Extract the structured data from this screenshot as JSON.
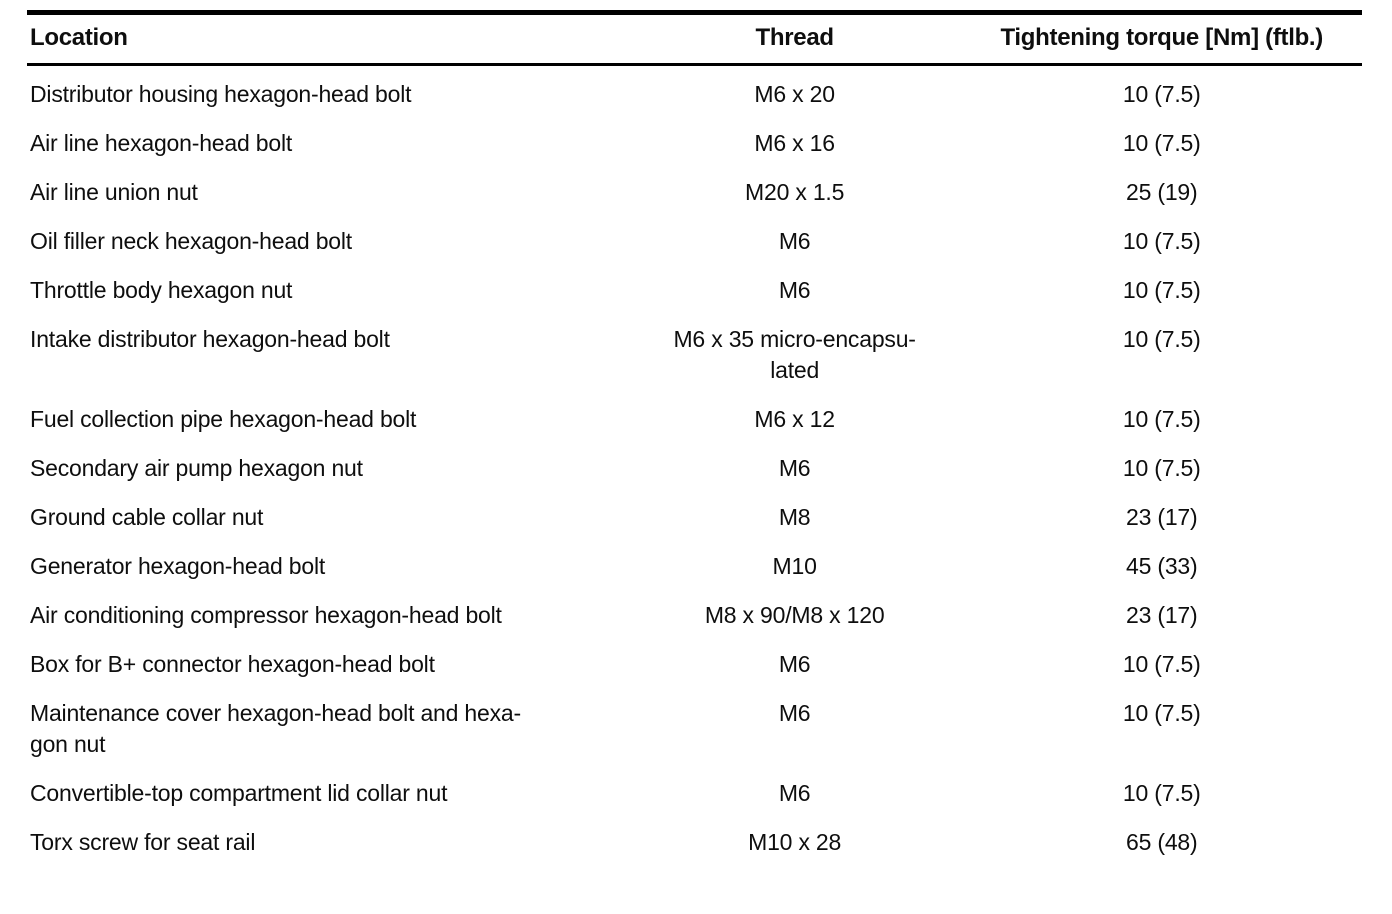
{
  "table": {
    "columns": [
      "Location",
      "Thread",
      "Tightening torque [Nm] (ftlb.)"
    ],
    "rows": [
      {
        "location": "Distributor housing hexagon-head bolt",
        "thread": "M6 x 20",
        "torque": "10 (7.5)"
      },
      {
        "location": "Air line hexagon-head bolt",
        "thread": "M6 x 16",
        "torque": "10 (7.5)"
      },
      {
        "location": "Air line union nut",
        "thread": "M20 x 1.5",
        "torque": "25 (19)"
      },
      {
        "location": "Oil filler neck hexagon-head bolt",
        "thread": "M6",
        "torque": "10 (7.5)"
      },
      {
        "location": "Throttle body hexagon nut",
        "thread": "M6",
        "torque": "10 (7.5)"
      },
      {
        "location": "Intake distributor hexagon-head bolt",
        "thread": "M6 x 35 micro-encapsu-\nlated",
        "torque": "10 (7.5)"
      },
      {
        "location": "Fuel collection pipe hexagon-head bolt",
        "thread": "M6 x 12",
        "torque": "10 (7.5)"
      },
      {
        "location": "Secondary air pump hexagon nut",
        "thread": "M6",
        "torque": "10 (7.5)"
      },
      {
        "location": "Ground cable collar nut",
        "thread": "M8",
        "torque": "23 (17)"
      },
      {
        "location": "Generator hexagon-head bolt",
        "thread": "M10",
        "torque": "45 (33)"
      },
      {
        "location": "Air conditioning compressor hexagon-head bolt",
        "thread": "M8 x 90/M8 x 120",
        "torque": "23 (17)"
      },
      {
        "location": "Box for B+ connector hexagon-head bolt",
        "thread": "M6",
        "torque": "10 (7.5)"
      },
      {
        "location": "Maintenance cover hexagon-head bolt and hexa-\ngon nut",
        "thread": "M6",
        "torque": "10 (7.5)"
      },
      {
        "location": "Convertible-top compartment lid collar nut",
        "thread": "M6",
        "torque": "10 (7.5)"
      },
      {
        "location": "Torx screw for seat rail",
        "thread": "M10 x 28",
        "torque": "65 (48)"
      }
    ]
  }
}
